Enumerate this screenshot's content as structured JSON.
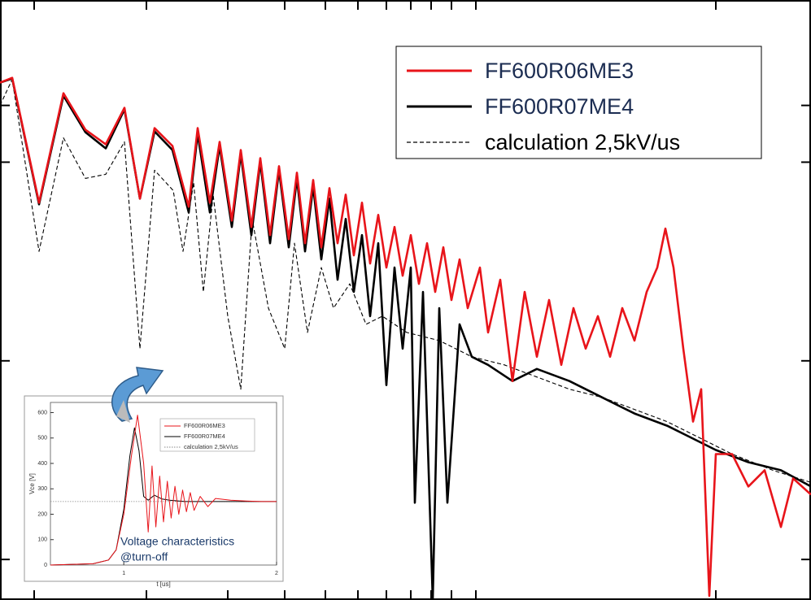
{
  "chart_data": [
    {
      "type": "line",
      "legend": "upper right",
      "xlim": [
        0,
        99.7
      ],
      "ylim": [
        0,
        74
      ],
      "xticks": [
        4.2,
        18,
        28,
        35,
        40,
        44,
        47.5,
        50.5,
        53,
        55.5,
        58.5,
        88
      ],
      "yticks": [
        61,
        54,
        29.5,
        5
      ],
      "series": [
        {
          "name": "FF600R06ME3",
          "color": "#e8141a",
          "linestyle": "solid",
          "x": [
            0,
            1.5,
            4.8,
            7.8,
            10.5,
            13,
            15.3,
            17.2,
            19,
            21.2,
            23.2,
            24.3,
            25.8,
            27,
            28.5,
            29.6,
            30.9,
            32,
            33.2,
            34.3,
            35.5,
            36.5,
            37.5,
            38.5,
            39.5,
            40.5,
            41.5,
            42.5,
            43.5,
            44.5,
            45.5,
            46.5,
            47.5,
            48.5,
            49.5,
            50.5,
            51.5,
            52.5,
            53.5,
            54.5,
            55.5,
            56.5,
            57.5,
            59,
            60,
            61.5,
            63,
            64.5,
            66,
            67.5,
            69,
            70.5,
            72,
            73.5,
            75,
            76.5,
            78,
            79.5,
            80.8,
            81.8,
            82.8,
            84,
            85.2,
            86.2,
            87.2,
            88,
            90,
            92,
            94,
            96,
            97.5,
            99.7
          ],
          "values": [
            63.8,
            64.4,
            49,
            62.5,
            58,
            56.2,
            60.7,
            49.5,
            58.2,
            56,
            48.5,
            58.2,
            49,
            56.5,
            46.8,
            55.5,
            46,
            54.5,
            45,
            53.5,
            44.5,
            52.7,
            44,
            51.8,
            43.5,
            50.8,
            44,
            50,
            42.5,
            49,
            41.5,
            47.5,
            41,
            46,
            40,
            45,
            39,
            44,
            38,
            43.5,
            37,
            42,
            36,
            41,
            33,
            39.5,
            27,
            38,
            30,
            37,
            29,
            36,
            31,
            35,
            30,
            36,
            32,
            38,
            41,
            45.8,
            41,
            31,
            22,
            26,
            0.5,
            18,
            18,
            14,
            16,
            9,
            15,
            13
          ]
        },
        {
          "name": "FF600R07ME4",
          "color": "#000000",
          "linestyle": "solid",
          "x": [
            0,
            1.5,
            4.8,
            7.8,
            10.5,
            13,
            15.3,
            17.2,
            19,
            21.2,
            23.2,
            24.3,
            25.8,
            27,
            28.5,
            29.6,
            30.9,
            32,
            33.2,
            34.3,
            35.5,
            36.5,
            37.5,
            38.5,
            39.5,
            40.5,
            41.5,
            42.5,
            43.5,
            44.5,
            45.5,
            46.5,
            47.5,
            48.5,
            49.5,
            50.5,
            51,
            52,
            53.2,
            54,
            55,
            56.5,
            58,
            60,
            63,
            66,
            70,
            74,
            78,
            82,
            85,
            88,
            92,
            96,
            99.7
          ],
          "values": [
            63.8,
            64.3,
            48.8,
            62.2,
            57.7,
            55.7,
            60.5,
            49.5,
            57.8,
            55.5,
            47.8,
            57.5,
            47.8,
            56,
            46,
            55,
            45,
            54,
            44,
            53,
            43.5,
            52,
            43,
            51,
            42,
            49.5,
            39.5,
            47,
            38,
            45,
            35,
            44,
            26.5,
            41,
            31,
            41,
            12,
            38,
            0,
            36,
            12,
            34,
            30,
            29,
            27,
            28.5,
            27,
            25,
            23,
            21.5,
            20,
            18.5,
            17,
            16,
            14
          ]
        },
        {
          "name": "calculation 2,5kV/us",
          "color": "#000000",
          "linestyle": "dashed",
          "x": [
            0,
            1.5,
            4.8,
            7.8,
            10.5,
            13,
            15.3,
            17.2,
            19,
            21.3,
            22.5,
            23.8,
            25,
            26.2,
            28,
            29.6,
            31,
            33,
            35,
            36.2,
            37.8,
            39.5,
            41,
            43,
            45,
            47,
            50,
            54,
            58,
            62,
            66,
            70,
            74,
            78,
            82,
            86,
            90,
            95,
            99.7
          ],
          "values": [
            61,
            64.2,
            43,
            57,
            52,
            52.5,
            56.5,
            31,
            53,
            50.5,
            43,
            51.5,
            38,
            50,
            35,
            26,
            47,
            36,
            31,
            44,
            33,
            41,
            36,
            39,
            34,
            35,
            33,
            32,
            30,
            29,
            27.5,
            26,
            25,
            23.5,
            22,
            20,
            18,
            16,
            14.5
          ]
        }
      ]
    },
    {
      "type": "line",
      "xlabel": "t [us]",
      "ylabel": "Vce [V]",
      "annotation": [
        "Voltage characteristics",
        "@turn-off"
      ],
      "xlim": [
        0.52,
        2
      ],
      "ylim": [
        0,
        640
      ],
      "xticks": [
        1,
        2
      ],
      "yticks": [
        0,
        100,
        200,
        300,
        400,
        500,
        600
      ],
      "series": [
        {
          "name": "FF600R06ME3",
          "color": "#e8141a",
          "linestyle": "solid",
          "x": [
            0.52,
            0.8,
            0.9,
            0.95,
            1.0,
            1.05,
            1.09,
            1.13,
            1.16,
            1.185,
            1.21,
            1.235,
            1.26,
            1.285,
            1.31,
            1.335,
            1.36,
            1.385,
            1.41,
            1.435,
            1.46,
            1.5,
            1.55,
            1.6,
            1.7,
            1.8,
            1.9,
            2.0
          ],
          "values": [
            0,
            5,
            20,
            60,
            200,
            430,
            590,
            400,
            130,
            390,
            150,
            350,
            170,
            330,
            185,
            310,
            200,
            295,
            210,
            285,
            215,
            270,
            230,
            262,
            255,
            252,
            250,
            250
          ]
        },
        {
          "name": "FF600R07ME4",
          "color": "#000000",
          "linestyle": "solid",
          "x": [
            0.52,
            0.8,
            0.9,
            0.95,
            1.0,
            1.04,
            1.07,
            1.1,
            1.13,
            1.16,
            1.2,
            1.25,
            1.3,
            1.4,
            1.5,
            1.7,
            2.0
          ],
          "values": [
            0,
            5,
            20,
            60,
            220,
            430,
            540,
            450,
            270,
            255,
            275,
            260,
            255,
            250,
            250,
            250,
            250
          ]
        },
        {
          "name": "calculation 2,5kV/us",
          "color": "#888888",
          "linestyle": "dotted",
          "x": [
            0.52,
            2.0
          ],
          "values": [
            250,
            250
          ]
        }
      ]
    }
  ]
}
